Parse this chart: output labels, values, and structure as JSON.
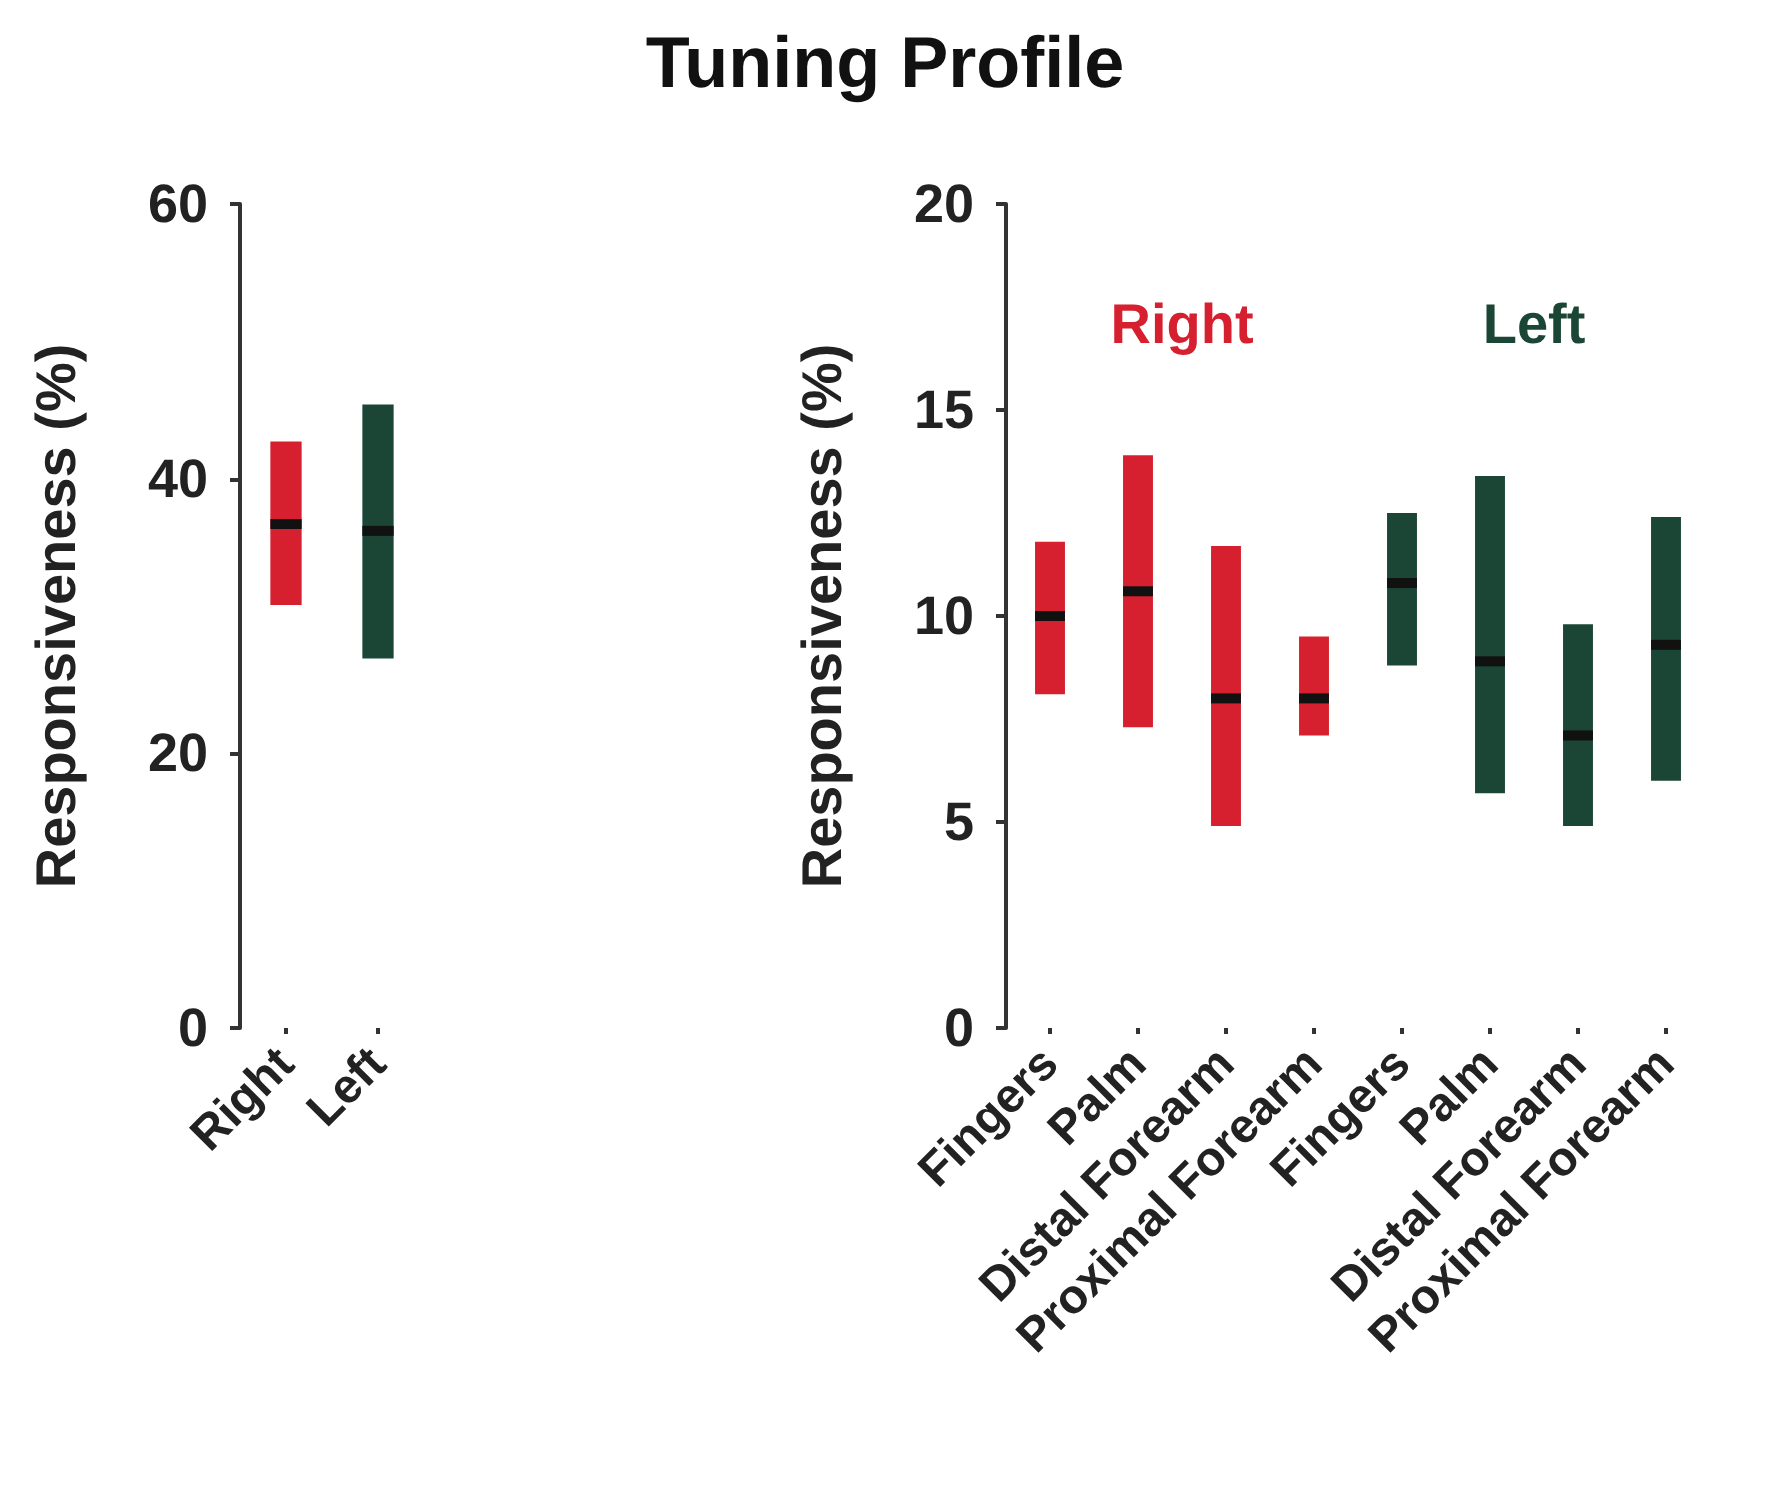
{
  "chart_data": [
    {
      "type": "box",
      "ylabel": "Responsiveness (%)",
      "categories": [
        "Right",
        "Left"
      ],
      "ylim": [
        0,
        60
      ],
      "yticks": [
        0,
        20,
        40,
        60
      ],
      "series": [
        {
          "color": "#d7202f",
          "boxes": [
            {
              "low": 30.8,
              "q1": 30.8,
              "median": 36.7,
              "q3": 42.7,
              "high": 42.7
            },
            null
          ]
        },
        {
          "color": "#1b4535",
          "boxes": [
            null,
            {
              "low": 26.9,
              "q1": 26.9,
              "median": 36.2,
              "q3": 45.4,
              "high": 45.4
            }
          ]
        }
      ]
    },
    {
      "type": "box",
      "title": "Tuning Profile",
      "ylabel": "Responsiveness (%)",
      "categories": [
        "Fingers",
        "Palm",
        "Distal Forearm",
        "Proximal Forearm",
        "Fingers",
        "Palm",
        "Distal Forearm",
        "Proximal Forearm"
      ],
      "ylim": [
        0,
        20
      ],
      "yticks": [
        0,
        5,
        10,
        15,
        20
      ],
      "series": [
        {
          "name": "Right",
          "color": "#d7202f",
          "boxes": [
            {
              "low": 8.1,
              "q1": 8.1,
              "median": 10.0,
              "q3": 11.8,
              "high": 11.8
            },
            {
              "low": 7.3,
              "q1": 7.3,
              "median": 10.6,
              "q3": 13.9,
              "high": 13.9
            },
            {
              "low": 4.9,
              "q1": 4.9,
              "median": 8.0,
              "q3": 11.7,
              "high": 11.7
            },
            {
              "low": 7.1,
              "q1": 7.1,
              "median": 8.0,
              "q3": 9.5,
              "high": 9.5
            },
            null,
            null,
            null,
            null
          ]
        },
        {
          "name": "Left",
          "color": "#1b4535",
          "boxes": [
            null,
            null,
            null,
            null,
            {
              "low": 8.8,
              "q1": 8.8,
              "median": 10.8,
              "q3": 12.5,
              "high": 12.5
            },
            {
              "low": 5.7,
              "q1": 5.7,
              "median": 8.9,
              "q3": 13.4,
              "high": 13.4
            },
            {
              "low": 4.9,
              "q1": 4.9,
              "median": 7.1,
              "q3": 9.8,
              "high": 9.8
            },
            {
              "low": 6.0,
              "q1": 6.0,
              "median": 9.3,
              "q3": 12.4,
              "high": 12.4
            }
          ]
        }
      ]
    }
  ]
}
